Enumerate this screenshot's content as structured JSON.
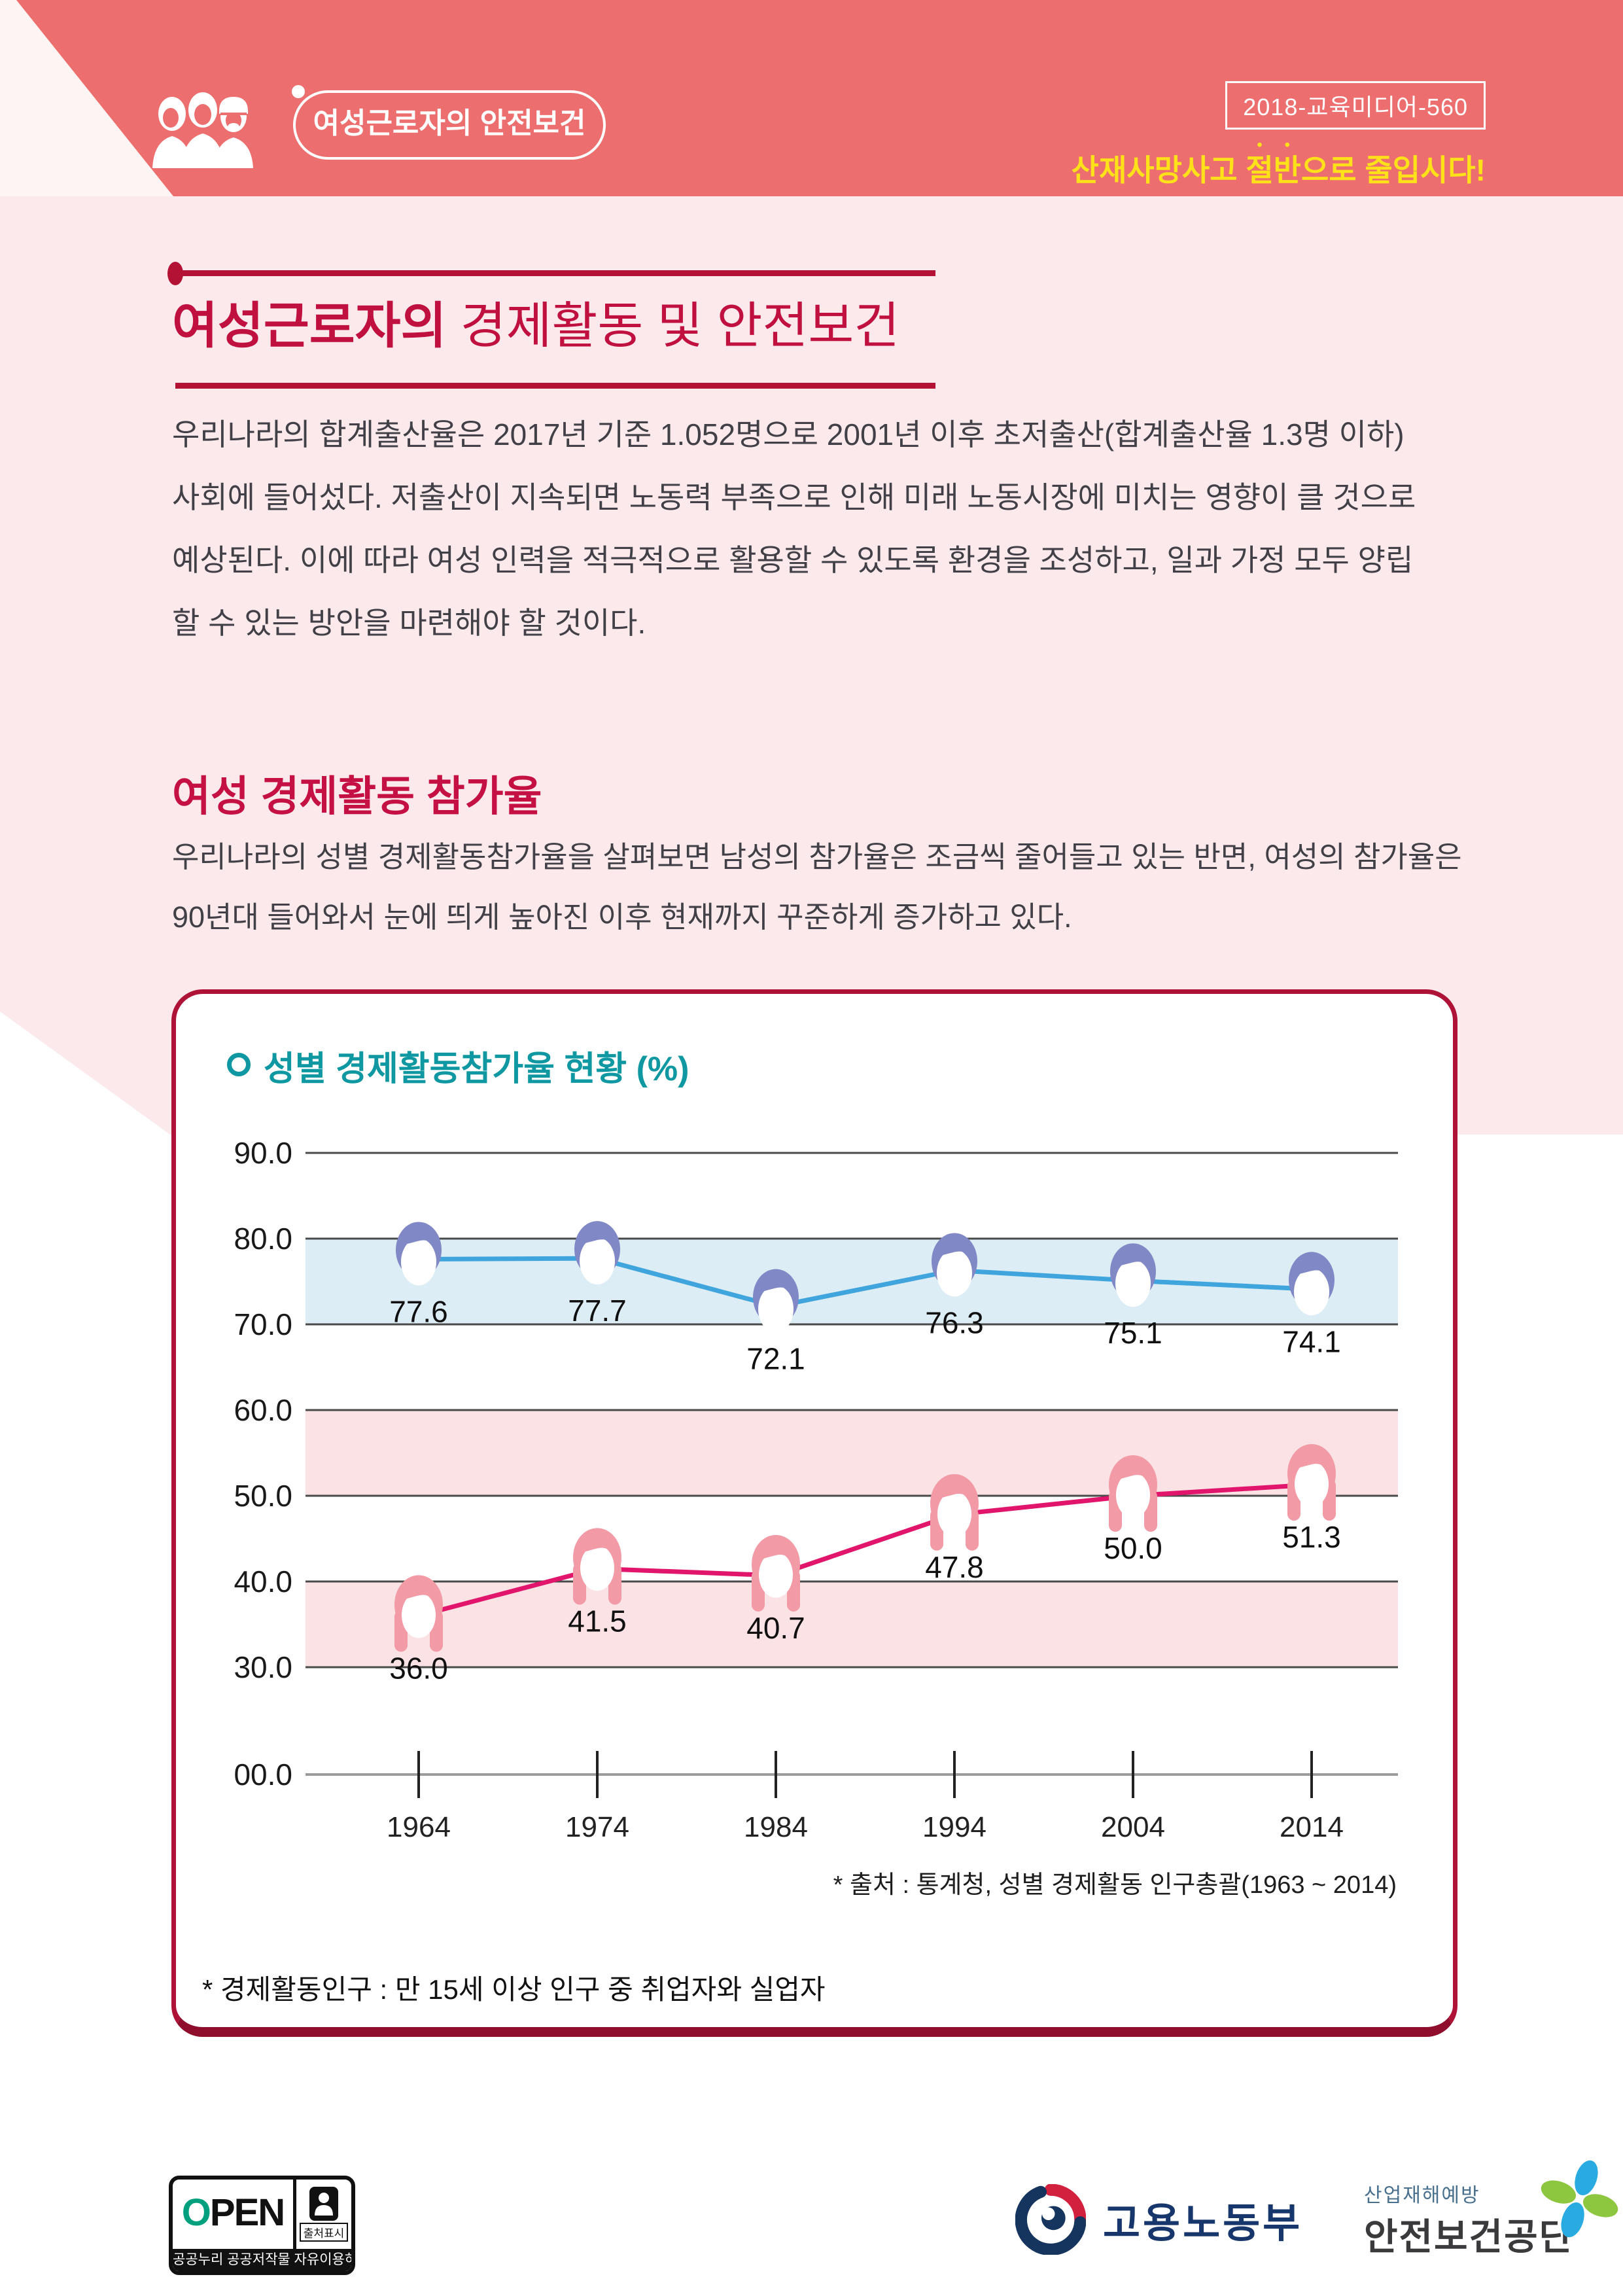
{
  "header": {
    "brand": "여성근로자의 안전보건",
    "badge": "2018-교육미디어-560",
    "slogan_prefix": "산재사망사고 ",
    "slogan_emph": "절반",
    "slogan_suffix": "으로 줄입시다!"
  },
  "title": {
    "emph": "여성근로자의",
    "rest": " 경제활동 및 안전보건"
  },
  "intro": {
    "lines": [
      "우리나라의 합계출산율은 2017년 기준 1.052명으로 2001년 이후 초저출산(합계출산율 1.3명 이하)",
      "사회에 들어섰다. 저출산이 지속되면 노동력 부족으로 인해 미래 노동시장에 미치는 영향이 클 것으로",
      "예상된다. 이에 따라 여성 인력을 적극적으로 활용할 수 있도록 환경을 조성하고, 일과 가정 모두 양립",
      "할 수 있는 방안을 마련해야 할 것이다."
    ]
  },
  "section": {
    "heading": "여성 경제활동 참가율",
    "lines": [
      "우리나라의 성별 경제활동참가율을 살펴보면 남성의 참가율은 조금씩 줄어들고 있는 반면, 여성의 참가율은",
      "90년대 들어와서 눈에 띄게 높아진 이후 현재까지 꾸준하게 증가하고 있다."
    ]
  },
  "chart_data": {
    "type": "line",
    "title": "성별 경제활동참가율 현황 (%)",
    "categories": [
      "1964",
      "1974",
      "1984",
      "1994",
      "2004",
      "2014"
    ],
    "series": [
      {
        "name": "남성",
        "icon": "male-face-icon",
        "color": "#3fa5dc",
        "values": [
          77.6,
          77.7,
          72.1,
          76.3,
          75.1,
          74.1
        ]
      },
      {
        "name": "여성",
        "icon": "female-face-icon",
        "color": "#e0156b",
        "values": [
          36.0,
          41.5,
          40.7,
          47.8,
          50.0,
          51.3
        ]
      }
    ],
    "bands": [
      {
        "range": [
          70,
          80
        ],
        "fill": "#dcedf6"
      },
      {
        "range": [
          50,
          60
        ],
        "fill": "#fbe2e4"
      },
      {
        "range": [
          30,
          40
        ],
        "fill": "#fbe2e4"
      }
    ],
    "yticks": [
      90,
      80,
      70,
      60,
      50,
      40,
      30
    ],
    "ytick_labels": [
      "90.0",
      "80.0",
      "70.0",
      "60.0",
      "50.0",
      "40.0",
      "30.0"
    ],
    "baseline_label": "00.0",
    "grid": true,
    "legend": "none",
    "source": "* 출처 : 통계청, 성별 경제활동 인구총괄(1963 ~ 2014)",
    "footnote": "* 경제활동인구 : 만 15세 이상 인구 중 취업자와 실업자"
  },
  "footer": {
    "open": {
      "word_o": "O",
      "word_pen": "PEN",
      "tag": "출처표시",
      "bar": "공공누리 공공저작물 자유이용허락"
    },
    "moel": {
      "name": "고용노동부"
    },
    "kosha": {
      "small": "산업재해예방",
      "name": "안전보건공단"
    }
  },
  "colors": {
    "header_coral": "#ed6e6e",
    "accent_crimson": "#b41235",
    "page_pink": "#fce9ec",
    "chart_teal": "#0f98a1",
    "slogan_yellow": "#ffe11a",
    "male_line_blue": "#3fa5dc",
    "female_line_pink": "#e0156b"
  }
}
